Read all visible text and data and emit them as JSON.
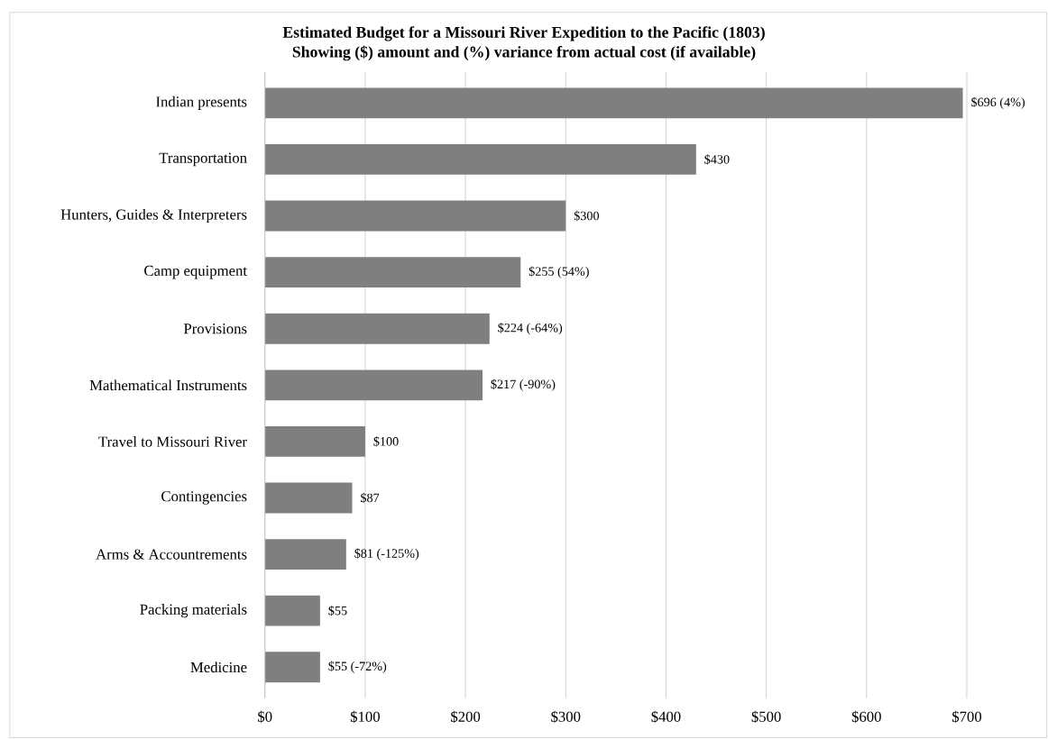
{
  "chart_data": {
    "type": "bar",
    "orientation": "horizontal",
    "title": "Estimated Budget for a Missouri River Expedition to the Pacific (1803)",
    "subtitle": "Showing ($) amount and (%) variance from actual cost (if available)",
    "categories": [
      "Indian presents",
      "Transportation",
      "Hunters, Guides & Interpreters",
      "Camp equipment",
      "Provisions",
      "Mathematical Instruments",
      "Travel to Missouri River",
      "Contingencies",
      "Arms & Accountrements",
      "Packing materials",
      "Medicine"
    ],
    "values": [
      696,
      430,
      300,
      255,
      224,
      217,
      100,
      87,
      81,
      55,
      55
    ],
    "value_labels": [
      "$696 (4%)",
      "$430",
      "$300",
      "$255 (54%)",
      "$224 (-64%)",
      "$217 (-90%)",
      "$100",
      "$87",
      "$81 (-125%)",
      "$55",
      "$55 (-72%)"
    ],
    "color": "#7f7f7f",
    "xlim": [
      0,
      700
    ],
    "xticks": [
      {
        "value": 0,
        "label": "$0"
      },
      {
        "value": 100,
        "label": "$100"
      },
      {
        "value": 200,
        "label": "$200"
      },
      {
        "value": 300,
        "label": "$300"
      },
      {
        "value": 400,
        "label": "$400"
      },
      {
        "value": 500,
        "label": "$500"
      },
      {
        "value": 600,
        "label": "$600"
      },
      {
        "value": 700,
        "label": "$700"
      }
    ],
    "grid": "x"
  }
}
